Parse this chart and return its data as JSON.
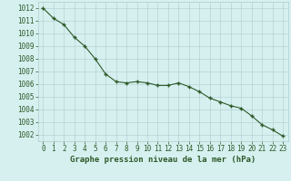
{
  "x": [
    0,
    1,
    2,
    3,
    4,
    5,
    6,
    7,
    8,
    9,
    10,
    11,
    12,
    13,
    14,
    15,
    16,
    17,
    18,
    19,
    20,
    21,
    22,
    23
  ],
  "y": [
    1012.0,
    1011.2,
    1010.7,
    1009.7,
    1009.0,
    1008.0,
    1006.8,
    1006.2,
    1006.1,
    1006.2,
    1006.1,
    1005.9,
    1005.9,
    1006.1,
    1005.8,
    1005.4,
    1004.9,
    1004.6,
    1004.3,
    1004.1,
    1003.5,
    1002.8,
    1002.4,
    1001.9
  ],
  "line_color": "#2d5a27",
  "marker_color": "#2d5a27",
  "bg_color": "#d6f0f0",
  "grid_color": "#b0cccc",
  "xlabel": "Graphe pression niveau de la mer (hPa)",
  "xlabel_color": "#2d5a27",
  "tick_color": "#2d5a27",
  "ylim": [
    1001.5,
    1012.5
  ],
  "xlim": [
    -0.5,
    23.5
  ],
  "yticks": [
    1002,
    1003,
    1004,
    1005,
    1006,
    1007,
    1008,
    1009,
    1010,
    1011,
    1012
  ],
  "xticks": [
    0,
    1,
    2,
    3,
    4,
    5,
    6,
    7,
    8,
    9,
    10,
    11,
    12,
    13,
    14,
    15,
    16,
    17,
    18,
    19,
    20,
    21,
    22,
    23
  ],
  "tick_fontsize": 5.5,
  "xlabel_fontsize": 6.5
}
